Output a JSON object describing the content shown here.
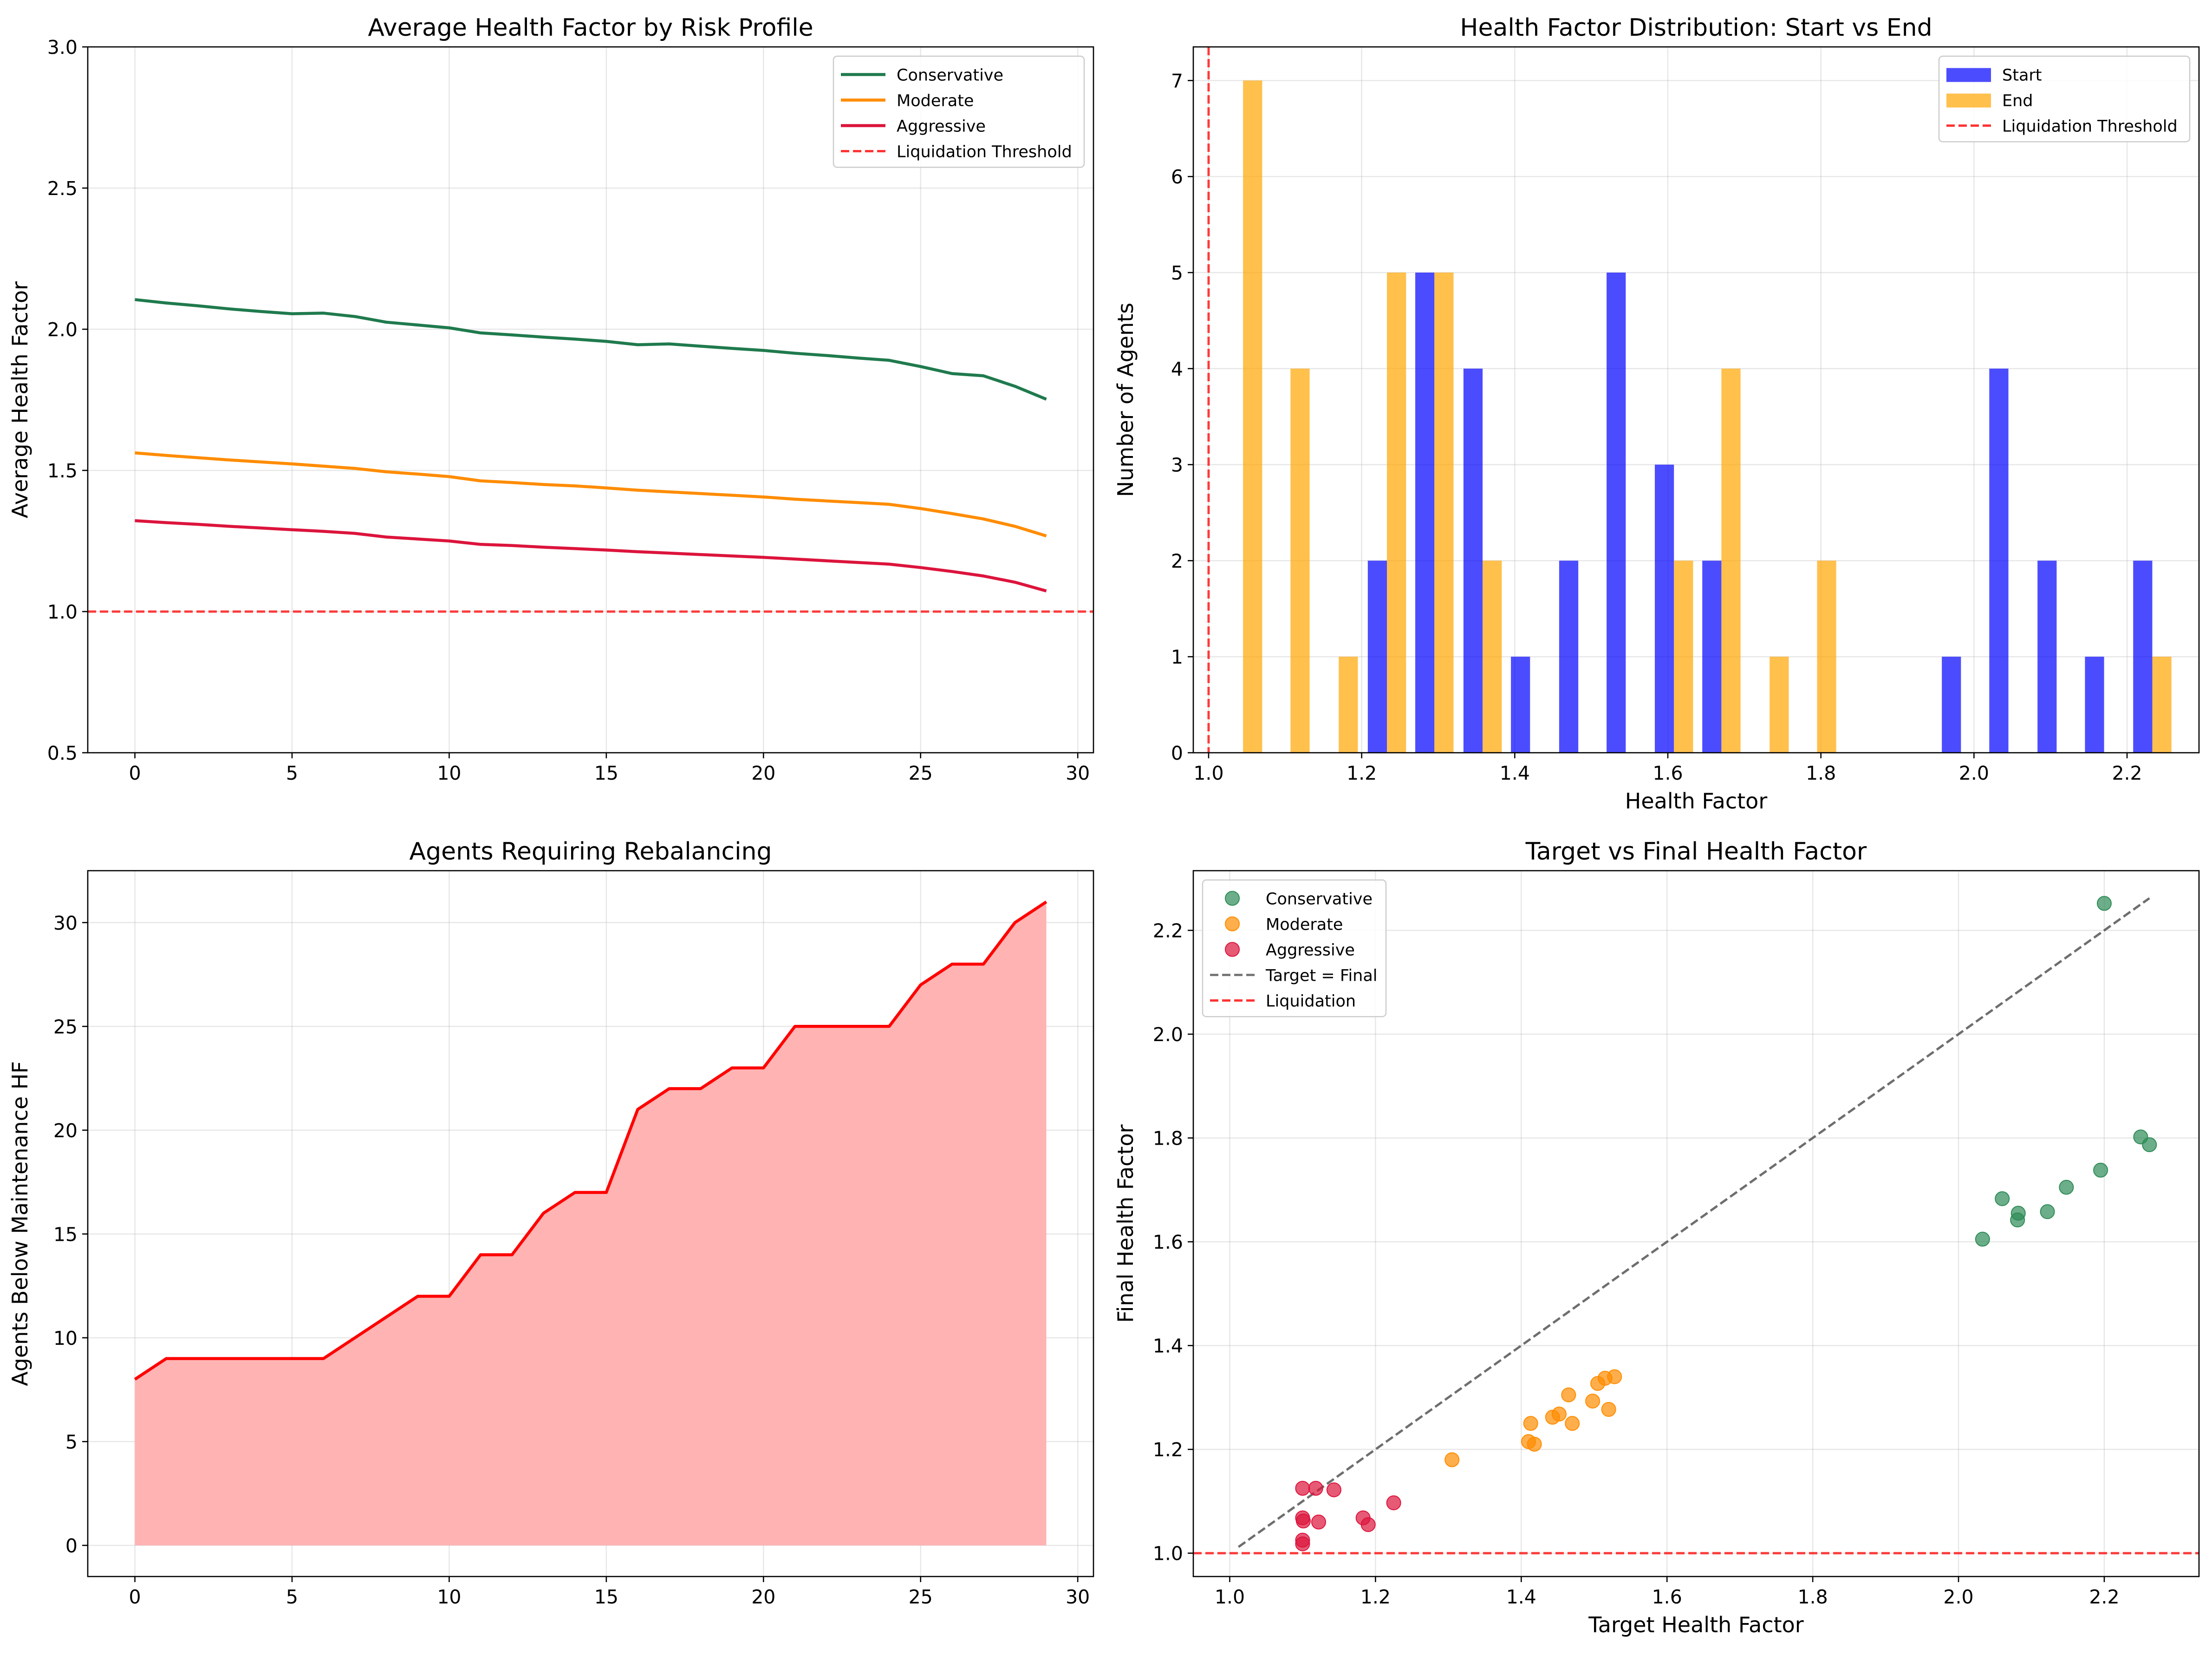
{
  "chart_data": [
    {
      "type": "line",
      "title": "Average Health Factor by Risk Profile",
      "xlabel": "",
      "ylabel": "Average Health Factor",
      "xlim": [
        -1.5,
        30.5
      ],
      "ylim": [
        0.5,
        3.0
      ],
      "xticks": [
        0,
        5,
        10,
        15,
        20,
        25,
        30
      ],
      "yticks": [
        0.5,
        1.0,
        1.5,
        2.0,
        2.5,
        3.0
      ],
      "ytick_labels": [
        "0.5",
        "1.0",
        "1.5",
        "2.0",
        "2.5",
        "3.0"
      ],
      "grid": true,
      "legend": "top-right",
      "x": [
        0,
        1,
        2,
        3,
        4,
        5,
        6,
        7,
        8,
        9,
        10,
        11,
        12,
        13,
        14,
        15,
        16,
        17,
        18,
        19,
        20,
        21,
        22,
        23,
        24,
        25,
        26,
        27,
        28,
        29
      ],
      "series": [
        {
          "name": "Conservative",
          "color": "#1f7a4d",
          "values": [
            2.105,
            2.093,
            2.083,
            2.072,
            2.063,
            2.055,
            2.057,
            2.045,
            2.025,
            2.015,
            2.005,
            1.987,
            1.98,
            1.972,
            1.965,
            1.957,
            1.945,
            1.948,
            1.94,
            1.932,
            1.925,
            1.915,
            1.907,
            1.898,
            1.89,
            1.868,
            1.843,
            1.835,
            1.798,
            1.752
          ]
        },
        {
          "name": "Moderate",
          "color": "#ff8c00",
          "values": [
            1.562,
            1.553,
            1.545,
            1.537,
            1.53,
            1.523,
            1.515,
            1.507,
            1.495,
            1.487,
            1.478,
            1.463,
            1.457,
            1.45,
            1.445,
            1.438,
            1.43,
            1.424,
            1.418,
            1.412,
            1.406,
            1.398,
            1.392,
            1.386,
            1.38,
            1.365,
            1.347,
            1.328,
            1.302,
            1.268
          ]
        },
        {
          "name": "Aggressive",
          "color": "#dc143c",
          "values": [
            1.322,
            1.315,
            1.309,
            1.302,
            1.296,
            1.29,
            1.284,
            1.277,
            1.264,
            1.257,
            1.25,
            1.238,
            1.234,
            1.228,
            1.223,
            1.218,
            1.212,
            1.207,
            1.202,
            1.197,
            1.192,
            1.186,
            1.18,
            1.174,
            1.168,
            1.156,
            1.142,
            1.126,
            1.104,
            1.073
          ]
        }
      ],
      "threshold": {
        "name": "Liquidation Threshold",
        "value": 1.0,
        "color": "#ff0000"
      }
    },
    {
      "type": "bar",
      "title": "Health Factor Distribution: Start vs End",
      "xlabel": "Health Factor",
      "ylabel": "Number of Agents",
      "xlim": [
        0.98,
        2.294
      ],
      "ylim": [
        0,
        7.35
      ],
      "xticks": [
        1.0,
        1.2,
        1.4,
        1.6,
        1.8,
        2.0,
        2.2
      ],
      "xtick_labels": [
        "1.0",
        "1.2",
        "1.4",
        "1.6",
        "1.8",
        "2.0",
        "2.2"
      ],
      "yticks": [
        0,
        1,
        2,
        3,
        4,
        5,
        6,
        7
      ],
      "grid": true,
      "legend": "top-right",
      "series": [
        {
          "name": "Start",
          "color": "#0000ff",
          "bins": [
            [
              1.208,
              1.233,
              2
            ],
            [
              1.27,
              1.295,
              5
            ],
            [
              1.333,
              1.358,
              4
            ],
            [
              1.395,
              1.42,
              1
            ],
            [
              1.458,
              1.483,
              2
            ],
            [
              1.52,
              1.545,
              5
            ],
            [
              1.583,
              1.608,
              3
            ],
            [
              1.645,
              1.67,
              2
            ],
            [
              1.958,
              1.983,
              1
            ],
            [
              2.02,
              2.045,
              4
            ],
            [
              2.083,
              2.108,
              2
            ],
            [
              2.145,
              2.17,
              1
            ],
            [
              2.208,
              2.233,
              2
            ]
          ]
        },
        {
          "name": "End",
          "color": "#ffa500",
          "bins": [
            [
              1.045,
              1.07,
              7
            ],
            [
              1.107,
              1.132,
              4
            ],
            [
              1.17,
              1.195,
              1
            ],
            [
              1.233,
              1.258,
              5
            ],
            [
              1.295,
              1.32,
              5
            ],
            [
              1.358,
              1.383,
              2
            ],
            [
              1.608,
              1.633,
              2
            ],
            [
              1.67,
              1.695,
              4
            ],
            [
              1.733,
              1.758,
              1
            ],
            [
              1.795,
              1.82,
              2
            ],
            [
              2.233,
              2.258,
              1
            ]
          ]
        }
      ],
      "threshold": {
        "name": "Liquidation Threshold",
        "value": 1.0,
        "color": "#ff0000"
      }
    },
    {
      "type": "area",
      "title": "Agents Requiring Rebalancing",
      "xlabel": "",
      "ylabel": "Agents Below Maintenance HF",
      "xlim": [
        -1.5,
        30.5
      ],
      "ylim": [
        -1.5,
        32.5
      ],
      "xticks": [
        0,
        5,
        10,
        15,
        20,
        25,
        30
      ],
      "yticks": [
        0,
        5,
        10,
        15,
        20,
        25,
        30
      ],
      "grid": true,
      "x": [
        0,
        1,
        2,
        3,
        4,
        5,
        6,
        7,
        8,
        9,
        10,
        11,
        12,
        13,
        14,
        15,
        16,
        17,
        18,
        19,
        20,
        21,
        22,
        23,
        24,
        25,
        26,
        27,
        28,
        29
      ],
      "values": [
        8,
        9,
        9,
        9,
        9,
        9,
        9,
        10,
        11,
        12,
        12,
        14,
        14,
        16,
        17,
        17,
        21,
        22,
        22,
        23,
        23,
        25,
        25,
        25,
        25,
        27,
        28,
        28,
        30,
        31
      ],
      "color": "#ff0000",
      "fill": "#ffb3b3"
    },
    {
      "type": "scatter",
      "title": "Target vs Final Health Factor",
      "xlabel": "Target Health Factor",
      "ylabel": "Final Health Factor",
      "xlim": [
        0.95,
        2.33
      ],
      "ylim": [
        0.955,
        2.315
      ],
      "xticks": [
        1.0,
        1.2,
        1.4,
        1.6,
        1.8,
        2.0,
        2.2
      ],
      "xtick_labels": [
        "1.0",
        "1.2",
        "1.4",
        "1.6",
        "1.8",
        "2.0",
        "2.2"
      ],
      "yticks": [
        1.0,
        1.2,
        1.4,
        1.6,
        1.8,
        2.0,
        2.2
      ],
      "ytick_labels": [
        "1.0",
        "1.2",
        "1.4",
        "1.6",
        "1.8",
        "2.0",
        "2.2"
      ],
      "grid": true,
      "legend": "top-left",
      "series": [
        {
          "name": "Conservative",
          "color": "#2e8b57",
          "points": [
            [
              2.033,
              1.605
            ],
            [
              2.06,
              1.683
            ],
            [
              2.081,
              1.642
            ],
            [
              2.082,
              1.655
            ],
            [
              2.122,
              1.658
            ],
            [
              2.148,
              1.705
            ],
            [
              2.195,
              1.738
            ],
            [
              2.2,
              2.252
            ],
            [
              2.25,
              1.802
            ],
            [
              2.262,
              1.787
            ]
          ]
        },
        {
          "name": "Moderate",
          "color": "#ff8c00",
          "points": [
            [
              1.305,
              1.18
            ],
            [
              1.41,
              1.215
            ],
            [
              1.413,
              1.25
            ],
            [
              1.418,
              1.21
            ],
            [
              1.443,
              1.262
            ],
            [
              1.452,
              1.268
            ],
            [
              1.465,
              1.305
            ],
            [
              1.47,
              1.25
            ],
            [
              1.498,
              1.293
            ],
            [
              1.505,
              1.327
            ],
            [
              1.515,
              1.337
            ],
            [
              1.52,
              1.277
            ],
            [
              1.528,
              1.34
            ]
          ]
        },
        {
          "name": "Aggressive",
          "color": "#dc143c",
          "points": [
            [
              1.1,
              1.125
            ],
            [
              1.1,
              1.068
            ],
            [
              1.101,
              1.062
            ],
            [
              1.1,
              1.025
            ],
            [
              1.1,
              1.018
            ],
            [
              1.118,
              1.125
            ],
            [
              1.122,
              1.06
            ],
            [
              1.143,
              1.122
            ],
            [
              1.183,
              1.068
            ],
            [
              1.19,
              1.055
            ],
            [
              1.225,
              1.097
            ]
          ]
        }
      ],
      "reference_line": {
        "name": "Target = Final",
        "from": [
          1.012,
          1.012
        ],
        "to": [
          2.262,
          2.262
        ],
        "color": "#555555"
      },
      "threshold": {
        "name": "Liquidation",
        "value": 1.0,
        "color": "#ff0000"
      }
    }
  ]
}
